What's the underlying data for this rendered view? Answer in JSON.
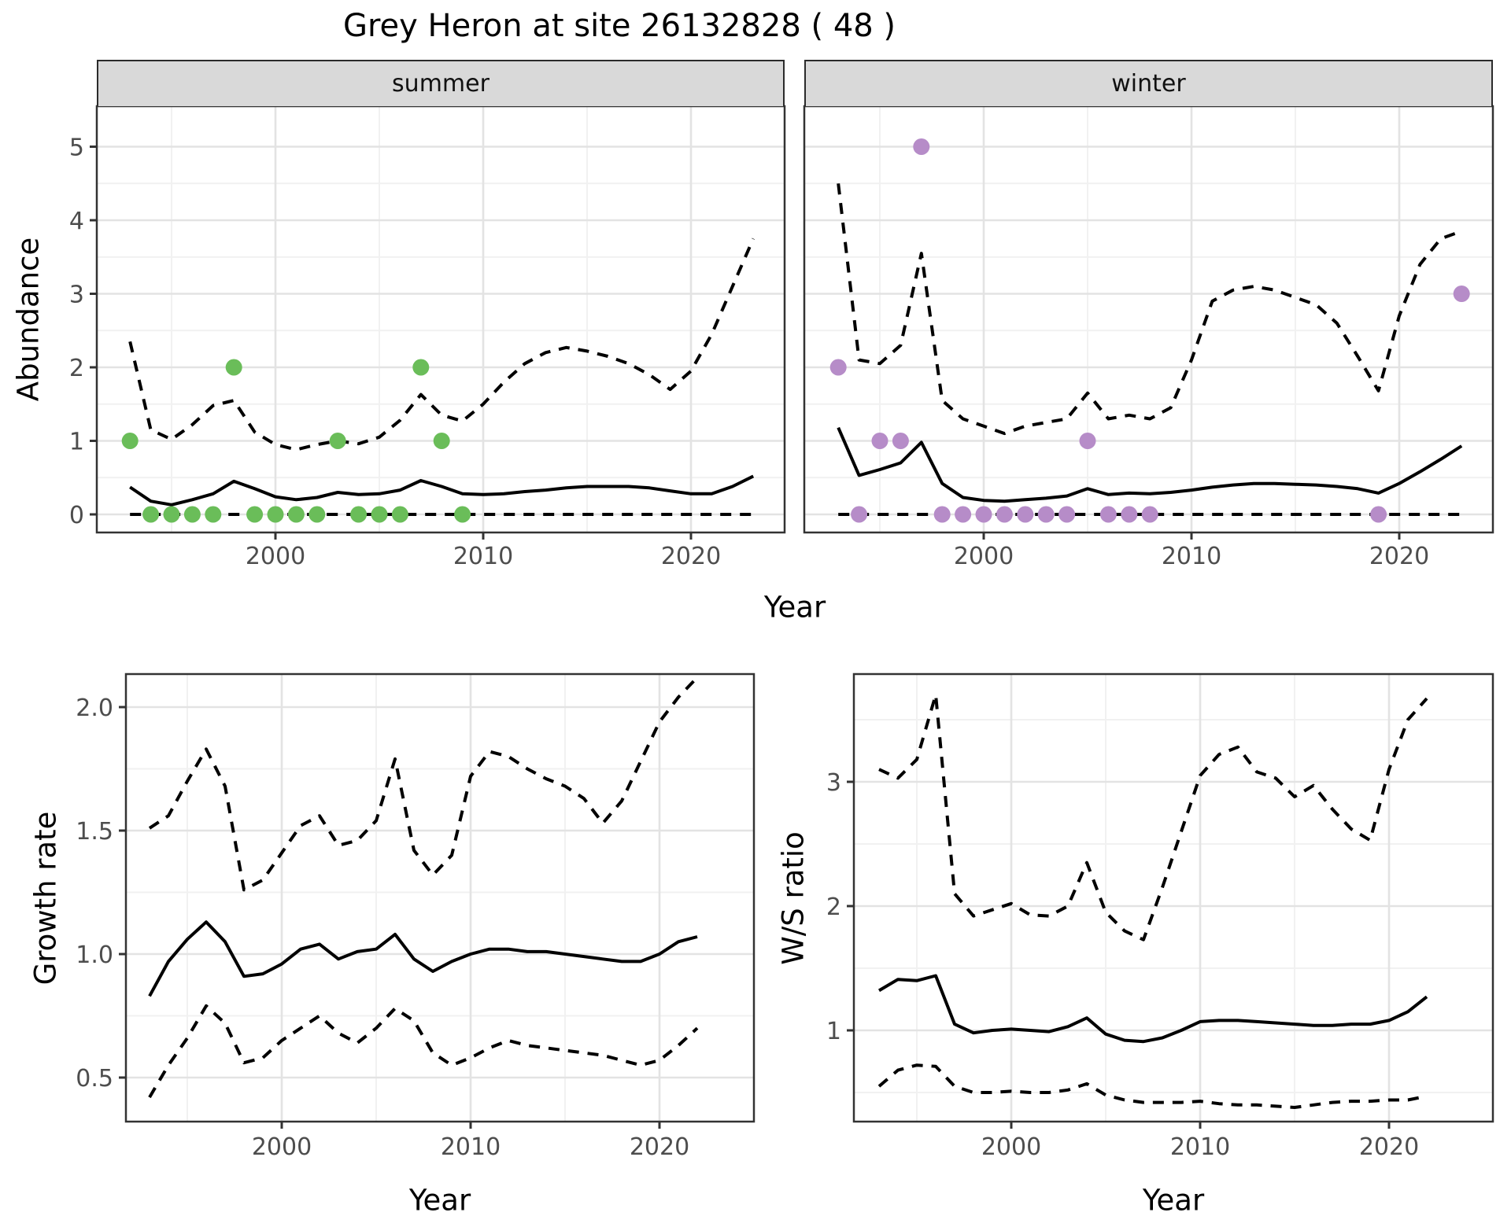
{
  "page": {
    "title": "Grey Heron at site 26132828 ( 48 )"
  },
  "facets": {
    "summer": "summer",
    "winter": "winter"
  },
  "axis": {
    "top_ylabel": "Abundance",
    "top_xlabel": "Year",
    "growth_ylabel": "Growth rate",
    "growth_xlabel": "Year",
    "ws_ylabel": "W/S ratio",
    "ws_xlabel": "Year"
  },
  "colors": {
    "summer_point": "#6abd59",
    "winter_point": "#b68cc8",
    "line": "#000000",
    "axis_text": "#4d4d4d",
    "tick_mark": "#333333",
    "strip_bg": "#d9d9d9",
    "panel_bg": "#ffffff",
    "grid_major": "#e3e3e3",
    "grid_minor": "#f1f1f1",
    "panel_border": "#333333"
  },
  "chart_data": [
    {
      "type": "line",
      "title": "summer",
      "xlabel": "Year",
      "ylabel": "Abundance",
      "x": [
        1993,
        1994,
        1995,
        1996,
        1997,
        1998,
        1999,
        2000,
        2001,
        2002,
        2003,
        2004,
        2005,
        2006,
        2007,
        2008,
        2009,
        2010,
        2011,
        2012,
        2013,
        2014,
        2015,
        2016,
        2017,
        2018,
        2019,
        2020,
        2021,
        2022,
        2023
      ],
      "series": [
        {
          "name": "mean",
          "style": "solid",
          "values": [
            0.37,
            0.18,
            0.13,
            0.2,
            0.28,
            0.45,
            0.35,
            0.24,
            0.2,
            0.23,
            0.3,
            0.27,
            0.28,
            0.33,
            0.46,
            0.38,
            0.28,
            0.27,
            0.28,
            0.31,
            0.33,
            0.36,
            0.38,
            0.38,
            0.38,
            0.36,
            0.32,
            0.28,
            0.28,
            0.38,
            0.52
          ]
        },
        {
          "name": "upper_ci",
          "style": "dashed",
          "values": [
            2.35,
            1.15,
            1.02,
            1.22,
            1.48,
            1.55,
            1.12,
            0.95,
            0.88,
            0.95,
            1.0,
            0.96,
            1.05,
            1.28,
            1.63,
            1.35,
            1.27,
            1.5,
            1.8,
            2.05,
            2.2,
            2.27,
            2.22,
            2.15,
            2.05,
            1.9,
            1.7,
            1.95,
            2.45,
            3.1,
            3.75
          ]
        },
        {
          "name": "lower_ci",
          "style": "dashed",
          "values": [
            0,
            0,
            0,
            0,
            0,
            0,
            0,
            0,
            0,
            0,
            0,
            0,
            0,
            0,
            0,
            0,
            0,
            0,
            0,
            0,
            0,
            0,
            0,
            0,
            0,
            0,
            0,
            0,
            0,
            0,
            0
          ]
        }
      ],
      "points": {
        "x": [
          1993,
          1994,
          1995,
          1996,
          1997,
          1998,
          1999,
          2000,
          2001,
          2002,
          2003,
          2004,
          2005,
          2006,
          2007,
          2008,
          2009
        ],
        "y": [
          1,
          0,
          0,
          0,
          0,
          2,
          0,
          0,
          0,
          0,
          1,
          0,
          0,
          0,
          2,
          1,
          0
        ],
        "color_key": "summer_point"
      },
      "xlim": [
        1991.4,
        2024.5
      ],
      "ylim": [
        -0.25,
        5.53
      ],
      "x_major_ticks": [
        2000,
        2010,
        2020
      ],
      "x_tick_labels": [
        "2000",
        "2010",
        "2020"
      ],
      "x_minor_ticks": [
        1995,
        2005,
        2015
      ],
      "y_major_ticks": [
        0,
        1,
        2,
        3,
        4,
        5
      ],
      "y_tick_labels": [
        "0",
        "1",
        "2",
        "3",
        "4",
        "5"
      ],
      "y_minor_ticks": [
        0.5,
        1.5,
        2.5,
        3.5,
        4.5
      ],
      "grid": true,
      "legend": false
    },
    {
      "type": "line",
      "title": "winter",
      "xlabel": "Year",
      "ylabel": "Abundance",
      "x": [
        1993,
        1994,
        1995,
        1996,
        1997,
        1998,
        1999,
        2000,
        2001,
        2002,
        2003,
        2004,
        2005,
        2006,
        2007,
        2008,
        2009,
        2010,
        2011,
        2012,
        2013,
        2014,
        2015,
        2016,
        2017,
        2018,
        2019,
        2020,
        2021,
        2022,
        2023
      ],
      "series": [
        {
          "name": "mean",
          "style": "solid",
          "values": [
            1.18,
            0.53,
            0.61,
            0.7,
            0.98,
            0.42,
            0.23,
            0.19,
            0.18,
            0.2,
            0.22,
            0.25,
            0.35,
            0.27,
            0.29,
            0.28,
            0.3,
            0.33,
            0.37,
            0.4,
            0.42,
            0.42,
            0.41,
            0.4,
            0.38,
            0.35,
            0.29,
            0.42,
            0.58,
            0.75,
            0.93
          ]
        },
        {
          "name": "upper_ci",
          "style": "dashed",
          "values": [
            4.5,
            2.1,
            2.05,
            2.3,
            3.55,
            1.55,
            1.3,
            1.2,
            1.1,
            1.2,
            1.25,
            1.3,
            1.65,
            1.3,
            1.35,
            1.3,
            1.45,
            2.1,
            2.9,
            3.05,
            3.1,
            3.05,
            2.95,
            2.85,
            2.6,
            2.15,
            1.68,
            2.7,
            3.4,
            3.75,
            3.85
          ]
        },
        {
          "name": "lower_ci",
          "style": "dashed",
          "values": [
            0,
            0,
            0,
            0,
            0,
            0,
            0,
            0,
            0,
            0,
            0,
            0,
            0,
            0,
            0,
            0,
            0,
            0,
            0,
            0,
            0,
            0,
            0,
            0,
            0,
            0,
            0,
            0,
            0,
            0,
            0
          ]
        }
      ],
      "points": {
        "x": [
          1993,
          1994,
          1995,
          1996,
          1997,
          1998,
          1999,
          2000,
          2001,
          2002,
          2003,
          2004,
          2005,
          2006,
          2007,
          2008,
          2019,
          2023
        ],
        "y": [
          2,
          0,
          1,
          1,
          5,
          0,
          0,
          0,
          0,
          0,
          0,
          0,
          1,
          0,
          0,
          0,
          0,
          3
        ],
        "color_key": "winter_point"
      },
      "xlim": [
        1991.4,
        2024.5
      ],
      "ylim": [
        -0.25,
        5.53
      ],
      "x_major_ticks": [
        2000,
        2010,
        2020
      ],
      "x_tick_labels": [
        "2000",
        "2010",
        "2020"
      ],
      "x_minor_ticks": [
        1995,
        2005,
        2015
      ],
      "y_major_ticks": [
        0,
        1,
        2,
        3,
        4,
        5
      ],
      "y_tick_labels": [
        "0",
        "1",
        "2",
        "3",
        "4",
        "5"
      ],
      "y_minor_ticks": [
        0.5,
        1.5,
        2.5,
        3.5,
        4.5
      ],
      "grid": true,
      "legend": false
    },
    {
      "type": "line",
      "title": "Growth rate",
      "xlabel": "Year",
      "ylabel": "Growth rate",
      "x": [
        1993,
        1994,
        1995,
        1996,
        1997,
        1998,
        1999,
        2000,
        2001,
        2002,
        2003,
        2004,
        2005,
        2006,
        2007,
        2008,
        2009,
        2010,
        2011,
        2012,
        2013,
        2014,
        2015,
        2016,
        2017,
        2018,
        2019,
        2020,
        2021,
        2022
      ],
      "series": [
        {
          "name": "mean",
          "style": "solid",
          "values": [
            0.83,
            0.97,
            1.06,
            1.13,
            1.05,
            0.91,
            0.92,
            0.96,
            1.02,
            1.04,
            0.98,
            1.01,
            1.02,
            1.08,
            0.98,
            0.93,
            0.97,
            1.0,
            1.02,
            1.02,
            1.01,
            1.01,
            1.0,
            0.99,
            0.98,
            0.97,
            0.97,
            1.0,
            1.05,
            1.07
          ]
        },
        {
          "name": "upper_ci",
          "style": "dashed",
          "values": [
            1.51,
            1.56,
            1.7,
            1.83,
            1.68,
            1.26,
            1.3,
            1.41,
            1.52,
            1.56,
            1.44,
            1.46,
            1.54,
            1.79,
            1.42,
            1.32,
            1.4,
            1.72,
            1.82,
            1.8,
            1.75,
            1.71,
            1.68,
            1.63,
            1.53,
            1.62,
            1.78,
            1.94,
            2.04,
            2.12
          ]
        },
        {
          "name": "lower_ci",
          "style": "dashed",
          "values": [
            0.42,
            0.55,
            0.66,
            0.79,
            0.72,
            0.56,
            0.58,
            0.65,
            0.7,
            0.75,
            0.68,
            0.64,
            0.7,
            0.78,
            0.73,
            0.6,
            0.55,
            0.58,
            0.62,
            0.65,
            0.63,
            0.62,
            0.61,
            0.6,
            0.59,
            0.57,
            0.55,
            0.57,
            0.63,
            0.7
          ]
        }
      ],
      "points": null,
      "xlim": [
        1991.7,
        2025.0
      ],
      "ylim": [
        0.32,
        2.13
      ],
      "x_major_ticks": [
        2000,
        2010,
        2020
      ],
      "x_tick_labels": [
        "2000",
        "2010",
        "2020"
      ],
      "x_minor_ticks": [
        1995,
        2005,
        2015
      ],
      "y_major_ticks": [
        0.5,
        1.0,
        1.5,
        2.0
      ],
      "y_tick_labels": [
        "0.5",
        "1.0",
        "1.5",
        "2.0"
      ],
      "y_minor_ticks": [
        0.75,
        1.25,
        1.75
      ],
      "grid": true,
      "legend": false
    },
    {
      "type": "line",
      "title": "W/S ratio",
      "xlabel": "Year",
      "ylabel": "W/S ratio",
      "x": [
        1993,
        1994,
        1995,
        1996,
        1997,
        1998,
        1999,
        2000,
        2001,
        2002,
        2003,
        2004,
        2005,
        2006,
        2007,
        2008,
        2009,
        2010,
        2011,
        2012,
        2013,
        2014,
        2015,
        2016,
        2017,
        2018,
        2019,
        2020,
        2021,
        2022
      ],
      "series": [
        {
          "name": "mean",
          "style": "solid",
          "values": [
            1.32,
            1.41,
            1.4,
            1.44,
            1.05,
            0.98,
            1.0,
            1.01,
            1.0,
            0.99,
            1.03,
            1.1,
            0.97,
            0.92,
            0.91,
            0.94,
            1.0,
            1.07,
            1.08,
            1.08,
            1.07,
            1.06,
            1.05,
            1.04,
            1.04,
            1.05,
            1.05,
            1.08,
            1.15,
            1.27
          ]
        },
        {
          "name": "upper_ci",
          "style": "dashed",
          "values": [
            3.1,
            3.03,
            3.18,
            3.7,
            2.1,
            1.92,
            1.97,
            2.02,
            1.93,
            1.92,
            2.0,
            2.35,
            1.95,
            1.8,
            1.73,
            2.15,
            2.6,
            3.05,
            3.22,
            3.28,
            3.08,
            3.03,
            2.88,
            2.97,
            2.78,
            2.62,
            2.53,
            3.1,
            3.5,
            3.67
          ]
        },
        {
          "name": "lower_ci",
          "style": "dashed",
          "values": [
            0.55,
            0.68,
            0.72,
            0.71,
            0.55,
            0.5,
            0.5,
            0.51,
            0.5,
            0.5,
            0.52,
            0.57,
            0.48,
            0.44,
            0.42,
            0.42,
            0.42,
            0.43,
            0.41,
            0.4,
            0.4,
            0.39,
            0.38,
            0.4,
            0.42,
            0.43,
            0.43,
            0.44,
            0.44,
            0.47
          ]
        }
      ],
      "points": null,
      "xlim": [
        1991.7,
        2025.5
      ],
      "ylim": [
        0.27,
        3.87
      ],
      "x_major_ticks": [
        2000,
        2010,
        2020
      ],
      "x_tick_labels": [
        "2000",
        "2010",
        "2020"
      ],
      "x_minor_ticks": [
        1995,
        2005,
        2015
      ],
      "y_major_ticks": [
        1,
        2,
        3
      ],
      "y_tick_labels": [
        "1",
        "2",
        "3"
      ],
      "y_minor_ticks": [
        0.5,
        1.5,
        2.5,
        3.5
      ],
      "grid": true,
      "legend": false
    }
  ]
}
